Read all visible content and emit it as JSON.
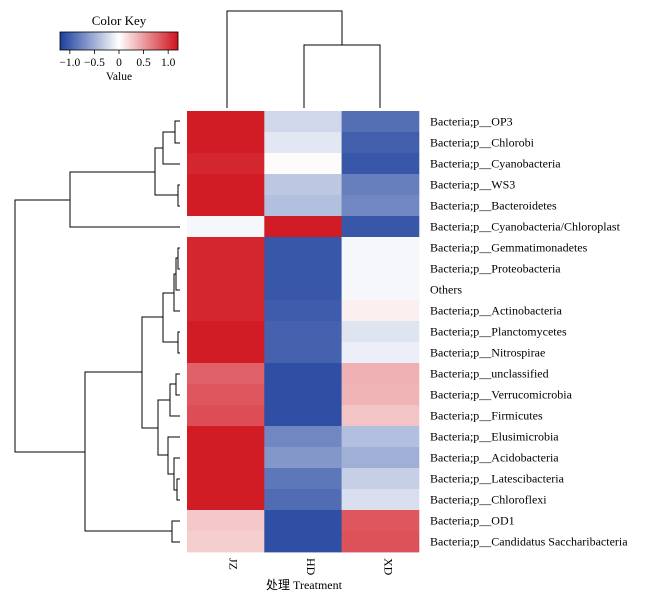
{
  "chart_data": {
    "type": "heatmap",
    "xlabel": "处理 Treatment",
    "columns": [
      "JZ",
      "HD",
      "XD"
    ],
    "rows": [
      "Bacteria;p__OP3",
      "Bacteria;p__Chlorobi",
      "Bacteria;p__Cyanobacteria",
      "Bacteria;p__WS3",
      "Bacteria;p__Bacteroidetes",
      "Bacteria;p__Cyanobacteria/Chloroplast",
      "Bacteria;p__Gemmatimonadetes",
      "Bacteria;p__Proteobacteria",
      "Others",
      "Bacteria;p__Actinobacteria",
      "Bacteria;p__Planctomycetes",
      "Bacteria;p__Nitrospirae",
      "Bacteria;p__unclassified",
      "Bacteria;p__Verrucomicrobia",
      "Bacteria;p__Firmicutes",
      "Bacteria;p__Elusimicrobia",
      "Bacteria;p__Acidobacteria",
      "Bacteria;p__Latescibacteria",
      "Bacteria;p__Chloroflexi",
      "Bacteria;p__OD1",
      "Bacteria;p__Candidatus Saccharibacteria"
    ],
    "values": [
      [
        1.15,
        -0.25,
        -0.9
      ],
      [
        1.15,
        -0.15,
        -1.0
      ],
      [
        1.1,
        0.02,
        -1.05
      ],
      [
        1.15,
        -0.35,
        -0.8
      ],
      [
        1.15,
        -0.4,
        -0.75
      ],
      [
        -0.05,
        1.15,
        -1.05
      ],
      [
        1.1,
        -1.05,
        -0.05
      ],
      [
        1.1,
        -1.05,
        -0.05
      ],
      [
        1.1,
        -1.05,
        -0.05
      ],
      [
        1.1,
        -1.02,
        0.08
      ],
      [
        1.15,
        -0.98,
        -0.17
      ],
      [
        1.15,
        -0.98,
        -0.1
      ],
      [
        0.8,
        -1.1,
        0.4
      ],
      [
        0.85,
        -1.1,
        0.38
      ],
      [
        0.9,
        -1.1,
        0.3
      ],
      [
        1.15,
        -0.75,
        -0.4
      ],
      [
        1.15,
        -0.65,
        -0.5
      ],
      [
        1.15,
        -0.85,
        -0.3
      ],
      [
        1.15,
        -0.92,
        -0.2
      ],
      [
        0.28,
        -1.1,
        0.85
      ],
      [
        0.25,
        -1.1,
        0.88
      ]
    ],
    "color_key": {
      "title": "Color Key",
      "label": "Value",
      "range": [
        -1.2,
        1.2
      ],
      "ticks": [
        "−1.0",
        "−0.5",
        "0",
        "0.5",
        "1.0"
      ],
      "tick_values": [
        -1.0,
        -0.5,
        0,
        0.5,
        1.0
      ],
      "low_color": "#1c3f9c",
      "mid_color": "#ffffff",
      "high_color": "#d0121c"
    },
    "column_dendrogram": [
      [
        1,
        2
      ],
      [
        0,
        [
          1,
          2
        ]
      ]
    ],
    "row_dendrogram": "hierarchical clustering of rows"
  }
}
